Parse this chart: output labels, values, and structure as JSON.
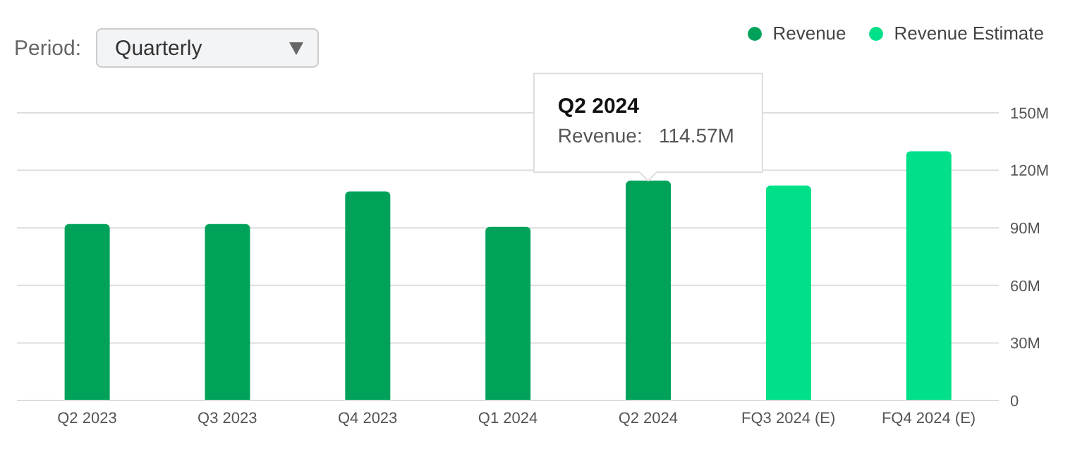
{
  "chart_data": {
    "type": "bar",
    "categories": [
      "Q2 2023",
      "Q3 2023",
      "Q4 2023",
      "Q1 2024",
      "Q2 2024",
      "FQ3 2024 (E)",
      "FQ4 2024 (E)"
    ],
    "series": [
      {
        "name": "Revenue",
        "color": "#00a25a",
        "values": [
          92,
          92,
          109,
          90.5,
          114.57,
          null,
          null
        ]
      },
      {
        "name": "Revenue Estimate",
        "color": "#00e088",
        "values": [
          null,
          null,
          null,
          null,
          null,
          112,
          130
        ]
      }
    ],
    "stacked": true,
    "ylim": [
      0,
      150
    ],
    "yticks": [
      {
        "value": 0,
        "label": "0"
      },
      {
        "value": 30,
        "label": "30M"
      },
      {
        "value": 60,
        "label": "60M"
      },
      {
        "value": 90,
        "label": "90M"
      },
      {
        "value": 120,
        "label": "120M"
      },
      {
        "value": 150,
        "label": "150M"
      }
    ],
    "grid": "y",
    "legend": "top right",
    "annotations": [
      "Period:",
      "Quarterly",
      {
        "text": "Q2 2024",
        "x": "Q2 2024",
        "y": 114.57
      },
      {
        "text": "Revenue:   114.57M",
        "x": "Q2 2024",
        "y": 114.57
      }
    ]
  }
}
